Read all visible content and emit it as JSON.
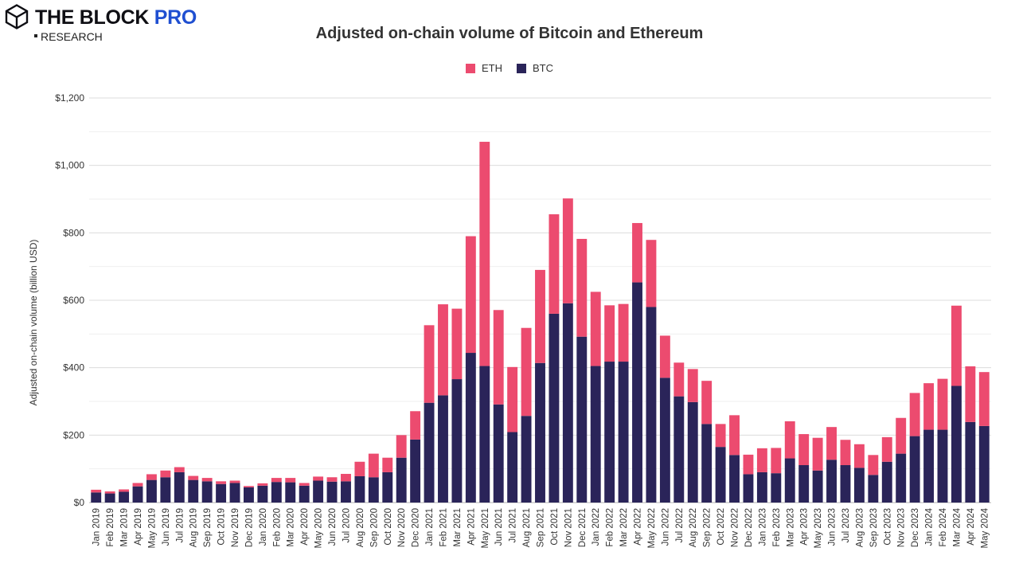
{
  "brand": {
    "name": "THE BLOCK",
    "name_accent": "PRO",
    "sub": "RESEARCH"
  },
  "colors": {
    "eth": "#ec4b6f",
    "btc": "#2a2459",
    "grid": "#dcdcdc",
    "text": "#333333",
    "brand_accent": "#1f4fd1"
  },
  "chart_data": {
    "type": "bar",
    "stacked": true,
    "title": "Adjusted on-chain volume of Bitcoin and Ethereum",
    "ylabel": "Adjusted on-chain volume (billion USD)",
    "xlabel": "",
    "ylim": [
      0,
      1200
    ],
    "yticks": [
      0,
      200,
      400,
      600,
      800,
      1000,
      1200
    ],
    "ytick_labels": [
      "$0",
      "$200",
      "$400",
      "$600",
      "$800",
      "$1,000",
      "$1,200"
    ],
    "grid": true,
    "legend_position": "top-center",
    "categories": [
      "Jan 2019",
      "Feb 2019",
      "Mar 2019",
      "Apr 2019",
      "May 2019",
      "Jun 2019",
      "Jul 2019",
      "Aug 2019",
      "Sep 2019",
      "Oct 2019",
      "Nov 2019",
      "Dec 2019",
      "Jan 2020",
      "Feb 2020",
      "Mar 2020",
      "Apr 2020",
      "May 2020",
      "Jun 2020",
      "Jul 2020",
      "Aug 2020",
      "Sep 2020",
      "Oct 2020",
      "Nov 2020",
      "Dec 2020",
      "Jan 2021",
      "Feb 2021",
      "Mar 2021",
      "Apr 2021",
      "May 2021",
      "Jun 2021",
      "Jul 2021",
      "Aug 2021",
      "Sep 2021",
      "Oct 2021",
      "Nov 2021",
      "Dec 2021",
      "Jan 2022",
      "Feb 2022",
      "Mar 2022",
      "Apr 2022",
      "May 2022",
      "Jun 2022",
      "Jul 2022",
      "Aug 2022",
      "Sep 2022",
      "Oct 2022",
      "Nov 2022",
      "Dec 2022",
      "Jan 2023",
      "Feb 2023",
      "Mar 2023",
      "Apr 2023",
      "May 2023",
      "Jun 2023",
      "Jul 2023",
      "Aug 2023",
      "Sep 2023",
      "Oct 2023",
      "Nov 2023",
      "Dec 2023",
      "Jan 2024",
      "Feb 2024",
      "Mar 2024",
      "Apr 2024",
      "May 2024"
    ],
    "series": [
      {
        "name": "BTC",
        "values": [
          30,
          27,
          32,
          48,
          67,
          75,
          90,
          67,
          63,
          55,
          58,
          45,
          50,
          61,
          60,
          50,
          65,
          62,
          63,
          78,
          75,
          90,
          133,
          187,
          296,
          318,
          366,
          444,
          405,
          291,
          209,
          257,
          414,
          560,
          591,
          492,
          405,
          418,
          418,
          653,
          580,
          370,
          315,
          298,
          233,
          165,
          141,
          84,
          90,
          87,
          131,
          111,
          95,
          127,
          111,
          103,
          82,
          121,
          145,
          197,
          216,
          216,
          346,
          239,
          227
        ]
      },
      {
        "name": "ETH",
        "values": [
          8,
          6,
          7,
          10,
          17,
          20,
          15,
          12,
          10,
          8,
          7,
          4,
          7,
          12,
          13,
          8,
          12,
          13,
          22,
          43,
          70,
          43,
          67,
          84,
          230,
          270,
          209,
          346,
          665,
          280,
          193,
          261,
          276,
          295,
          311,
          290,
          220,
          167,
          171,
          176,
          199,
          125,
          100,
          98,
          128,
          68,
          118,
          58,
          71,
          75,
          110,
          92,
          97,
          97,
          75,
          70,
          59,
          73,
          106,
          128,
          138,
          151,
          238,
          165,
          160
        ]
      }
    ]
  }
}
